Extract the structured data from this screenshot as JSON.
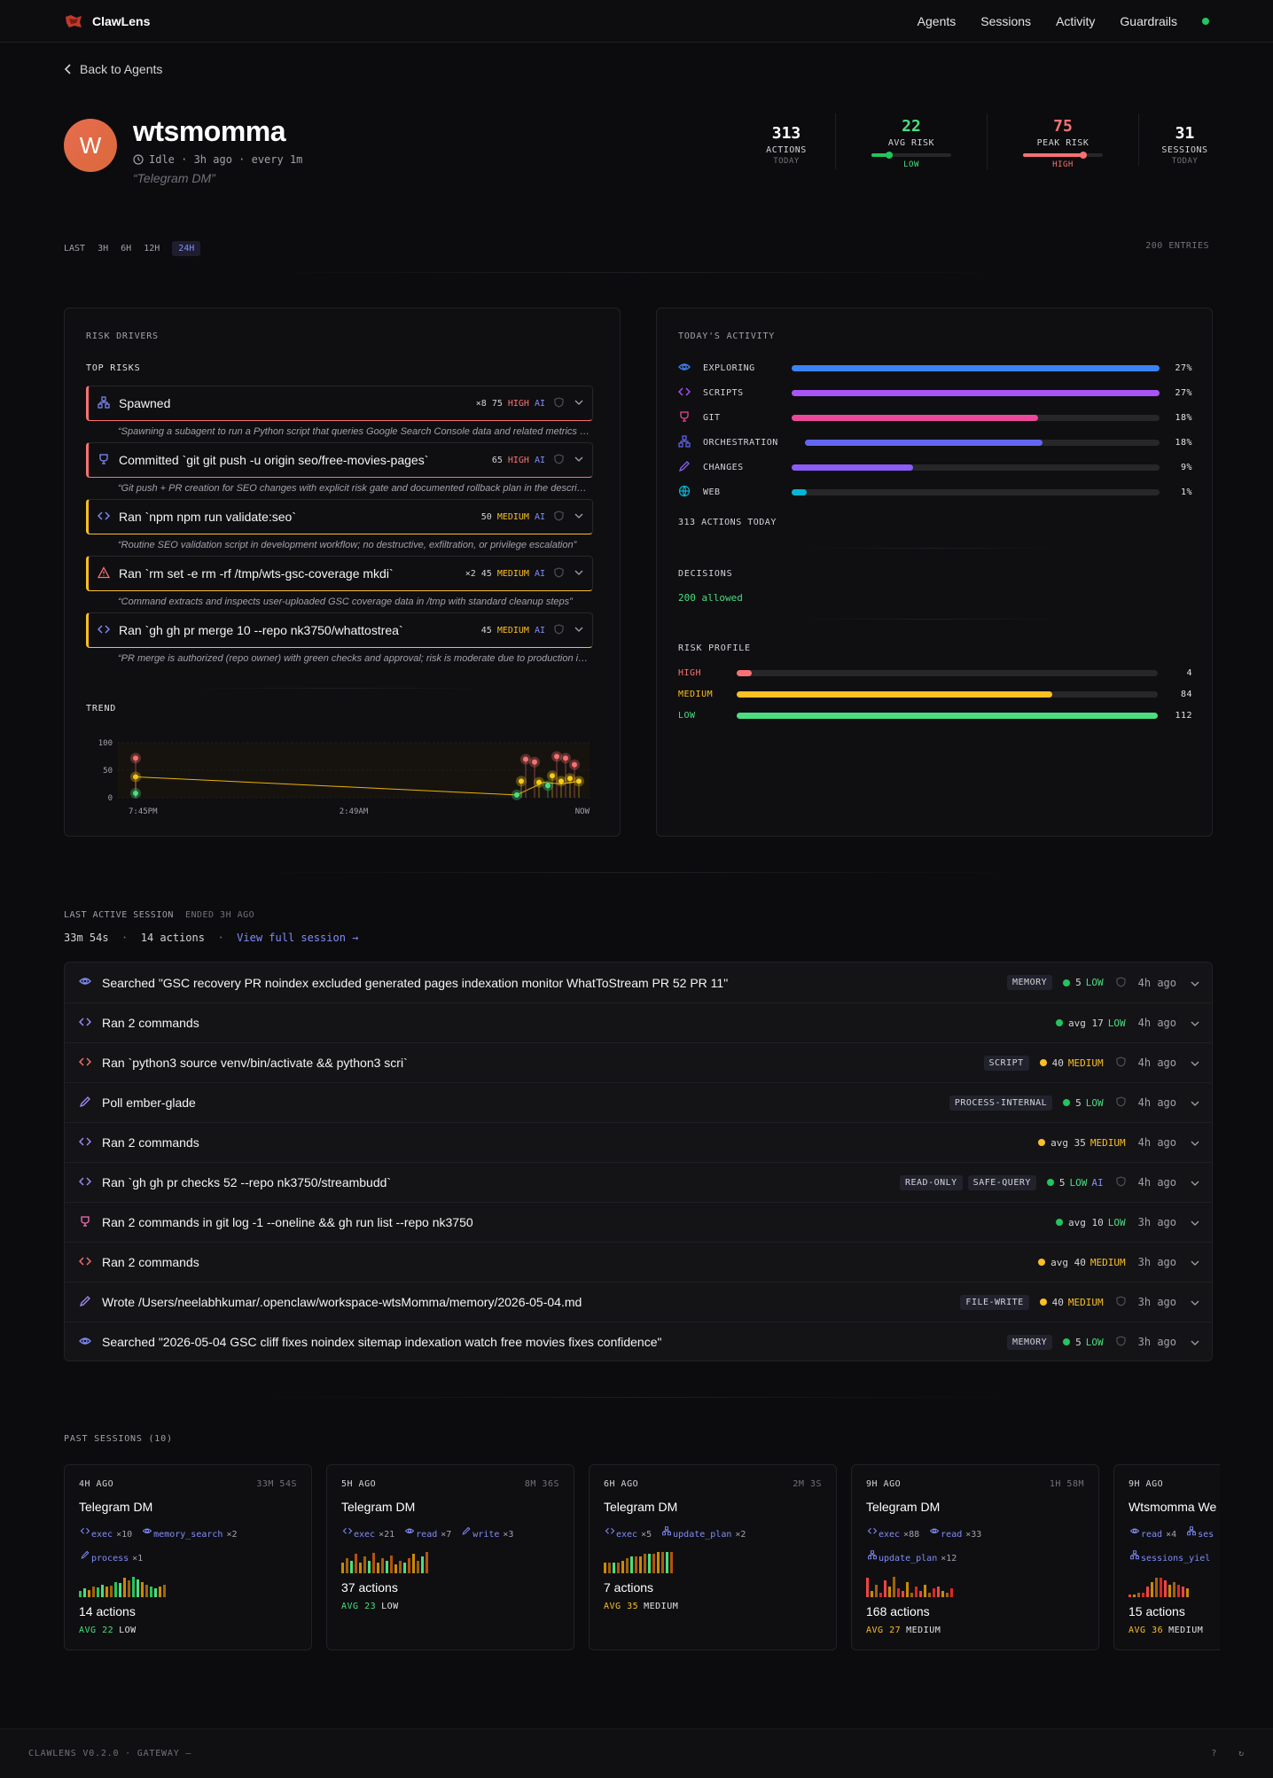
{
  "nav": {
    "brand": "ClawLens",
    "items": [
      "Agents",
      "Sessions",
      "Activity",
      "Guardrails"
    ]
  },
  "back_label": "Back to Agents",
  "agent": {
    "initial": "W",
    "name": "wtsmomma",
    "status": "Idle · 3h ago · every 1m",
    "description": "“Telegram DM”"
  },
  "stats": [
    {
      "value": "313",
      "label": "ACTIONS",
      "sub": "TODAY"
    },
    {
      "value": "22",
      "label": "AVG RISK",
      "sub": "LOW",
      "level": 0.22,
      "color": "#22c55e"
    },
    {
      "value": "75",
      "label": "PEAK RISK",
      "sub": "HIGH",
      "level": 0.75,
      "color": "#f87171"
    },
    {
      "value": "31",
      "label": "SESSIONS",
      "sub": "TODAY"
    }
  ],
  "range": {
    "label": "LAST",
    "options": [
      "3H",
      "6H",
      "12H",
      "24H"
    ],
    "selected": "24H",
    "entries": "200 ENTRIES"
  },
  "risk_drivers": {
    "section_label": "RISK DRIVERS",
    "top_label": "TOP RISKS",
    "items": [
      {
        "icon": "spawn-icon",
        "title": "Spawned",
        "count": "×8",
        "score": "75",
        "level": "HIGH",
        "ai": "AI",
        "color": "#f87171",
        "desc": "“Spawning a subagent to run a Python script that queries Google Search Console data and related metrics for indexation changes”"
      },
      {
        "icon": "git-icon",
        "title": "Committed `git git push -u origin seo/free-movies-pages`",
        "count": "",
        "score": "65",
        "level": "HIGH",
        "ai": "AI",
        "color": "#f87171",
        "desc": "“Git push + PR creation for SEO changes with explicit risk gate and documented rollback plan in the description”"
      },
      {
        "icon": "code-icon",
        "title": "Ran `npm npm run validate:seo`",
        "count": "",
        "score": "50",
        "level": "MEDIUM",
        "ai": "AI",
        "color": "#fbbf24",
        "desc": "“Routine SEO validation script in development workflow; no destructive, exfiltration, or privilege escalation”"
      },
      {
        "icon": "warning-icon",
        "title": "Ran `rm set -e rm -rf /tmp/wts-gsc-coverage mkdi`",
        "count": "×2",
        "score": "45",
        "level": "MEDIUM",
        "ai": "AI",
        "color": "#fbbf24",
        "desc": "“Command extracts and inspects user-uploaded GSC coverage data in /tmp with standard cleanup steps”"
      },
      {
        "icon": "code-icon",
        "title": "Ran `gh gh pr merge 10 --repo nk3750/whattostrea`",
        "count": "",
        "score": "45",
        "level": "MEDIUM",
        "ai": "AI",
        "color": "#fbbf24",
        "desc": "“PR merge is authorized (repo owner) with green checks and approval; risk is moderate due to production impact”"
      }
    ],
    "trend_label": "TREND",
    "trend_y_ticks": [
      "100",
      "50",
      "0"
    ],
    "trend_x_ticks": [
      "7:45PM",
      "2:49AM",
      "NOW"
    ]
  },
  "chart_data": {
    "type": "line",
    "title": "",
    "xlabel": "",
    "ylabel": "",
    "ylim": [
      0,
      100
    ],
    "x_ticks": [
      "7:45PM",
      "2:49AM",
      "NOW"
    ],
    "series": [
      {
        "values": [
          [
            0.0,
            38
          ],
          [
            0.0,
            72
          ],
          [
            0.0,
            8
          ],
          [
            0.86,
            5
          ],
          [
            0.87,
            30
          ],
          [
            0.88,
            70
          ],
          [
            0.9,
            65
          ],
          [
            0.91,
            28
          ],
          [
            0.93,
            22
          ],
          [
            0.94,
            40
          ],
          [
            0.95,
            75
          ],
          [
            0.96,
            30
          ],
          [
            0.97,
            72
          ],
          [
            0.98,
            35
          ],
          [
            0.99,
            60
          ],
          [
            1.0,
            30
          ]
        ]
      }
    ]
  },
  "activity": {
    "section_label": "TODAY'S ACTIVITY",
    "rows": [
      {
        "icon": "eye-icon",
        "name": "EXPLORING",
        "pct": "27%",
        "fill": 1.0,
        "color": "#3b82f6"
      },
      {
        "icon": "code-icon",
        "name": "SCRIPTS",
        "pct": "27%",
        "fill": 1.0,
        "color": "#a855f7"
      },
      {
        "icon": "git-icon",
        "name": "GIT",
        "pct": "18%",
        "fill": 0.67,
        "color": "#ec4899"
      },
      {
        "icon": "spawn-icon",
        "name": "ORCHESTRATION",
        "pct": "18%",
        "fill": 0.67,
        "color": "#6366f1"
      },
      {
        "icon": "pencil-icon",
        "name": "CHANGES",
        "pct": "9%",
        "fill": 0.33,
        "color": "#8b5cf6"
      },
      {
        "icon": "globe-icon",
        "name": "WEB",
        "pct": "1%",
        "fill": 0.04,
        "color": "#06b6d4"
      }
    ],
    "total": "313 ACTIONS TODAY",
    "decisions_label": "DECISIONS",
    "decisions_value": "200 allowed",
    "profile_label": "RISK PROFILE",
    "profile": [
      {
        "name": "HIGH",
        "value": "4",
        "fill": 0.036,
        "color": "#f87171"
      },
      {
        "name": "MEDIUM",
        "value": "84",
        "fill": 0.75,
        "color": "#fbbf24"
      },
      {
        "name": "LOW",
        "value": "112",
        "fill": 1.0,
        "color": "#4ade80"
      }
    ]
  },
  "last_session": {
    "label": "LAST ACTIVE SESSION",
    "ended": "ENDED 3H AGO",
    "duration": "33m 54s",
    "actions": "14 actions",
    "link": "View full session →",
    "rows": [
      {
        "icon": "eye-icon",
        "color": "#818cf8",
        "text": "Searched \"GSC recovery PR noindex excluded generated pages indexation monitor WhatToStream PR 52 PR 11\"",
        "tags": [
          "MEMORY"
        ],
        "dot": "#22c55e",
        "score": "5",
        "level": "LOW",
        "levelColor": "#4ade80",
        "ai": "",
        "shield": true,
        "time": "4h ago"
      },
      {
        "icon": "code-icon",
        "color": "#a78bfa",
        "text": "Ran 2 commands",
        "tags": [],
        "dot": "#22c55e",
        "score": "avg 17",
        "level": "LOW",
        "levelColor": "#4ade80",
        "ai": "",
        "shield": false,
        "time": "4h ago"
      },
      {
        "icon": "code-icon",
        "color": "#f87171",
        "text": "Ran `python3 source venv/bin/activate && python3 scri`",
        "tags": [
          "SCRIPT"
        ],
        "dot": "#fbbf24",
        "score": "40",
        "level": "MEDIUM",
        "levelColor": "#fbbf24",
        "ai": "",
        "shield": true,
        "time": "4h ago"
      },
      {
        "icon": "pencil-icon",
        "color": "#a78bfa",
        "text": "Poll ember-glade",
        "tags": [
          "PROCESS-INTERNAL"
        ],
        "dot": "#22c55e",
        "score": "5",
        "level": "LOW",
        "levelColor": "#4ade80",
        "ai": "",
        "shield": true,
        "time": "4h ago"
      },
      {
        "icon": "code-icon",
        "color": "#a78bfa",
        "text": "Ran 2 commands",
        "tags": [],
        "dot": "#fbbf24",
        "score": "avg 35",
        "level": "MEDIUM",
        "levelColor": "#fbbf24",
        "ai": "",
        "shield": false,
        "time": "4h ago"
      },
      {
        "icon": "code-icon",
        "color": "#a78bfa",
        "text": "Ran `gh gh pr checks 52 --repo nk3750/streambudd`",
        "tags": [
          "READ-ONLY",
          "SAFE-QUERY"
        ],
        "dot": "#22c55e",
        "score": "5",
        "level": "LOW",
        "levelColor": "#4ade80",
        "ai": "AI",
        "shield": true,
        "time": "4h ago"
      },
      {
        "icon": "git-icon",
        "color": "#f472b6",
        "text": "Ran 2 commands in git log -1 --oneline && gh run list --repo nk3750",
        "tags": [],
        "dot": "#22c55e",
        "score": "avg 10",
        "level": "LOW",
        "levelColor": "#4ade80",
        "ai": "",
        "shield": false,
        "time": "3h ago"
      },
      {
        "icon": "code-icon",
        "color": "#f87171",
        "text": "Ran 2 commands",
        "tags": [],
        "dot": "#fbbf24",
        "score": "avg 40",
        "level": "MEDIUM",
        "levelColor": "#fbbf24",
        "ai": "",
        "shield": false,
        "time": "3h ago"
      },
      {
        "icon": "pencil-icon",
        "color": "#a78bfa",
        "text": "Wrote /Users/neelabhkumar/.openclaw/workspace-wtsMomma/memory/2026-05-04.md",
        "tags": [
          "FILE-WRITE"
        ],
        "dot": "#fbbf24",
        "score": "40",
        "level": "MEDIUM",
        "levelColor": "#fbbf24",
        "ai": "",
        "shield": true,
        "time": "3h ago"
      },
      {
        "icon": "eye-icon",
        "color": "#818cf8",
        "text": "Searched \"2026-05-04 GSC cliff fixes noindex sitemap indexation watch free movies fixes confidence\"",
        "tags": [
          "MEMORY"
        ],
        "dot": "#22c55e",
        "score": "5",
        "level": "LOW",
        "levelColor": "#4ade80",
        "ai": "",
        "shield": true,
        "time": "3h ago"
      }
    ]
  },
  "past_sessions": {
    "label": "PAST SESSIONS (10)",
    "cards": [
      {
        "ago": "4H AGO",
        "dur": "33M 54S",
        "title": "Telegram DM",
        "tags": [
          [
            "exec",
            "×10"
          ],
          [
            "memory_search",
            "×2"
          ],
          [
            "process",
            "×1"
          ]
        ],
        "actions": "14 actions",
        "avg": "AVG 22",
        "level": "LOW",
        "avgColor": "#4ade80",
        "bars": [
          0.3,
          0.4,
          0.35,
          0.5,
          0.45,
          0.6,
          0.5,
          0.55,
          0.7,
          0.65,
          0.9,
          0.8,
          0.95,
          0.85,
          0.7,
          0.6,
          0.5,
          0.4,
          0.5,
          0.6
        ],
        "barColor": "mixed-green"
      },
      {
        "ago": "5H AGO",
        "dur": "8M 36S",
        "title": "Telegram DM",
        "tags": [
          [
            "exec",
            "×21"
          ],
          [
            "read",
            "×7"
          ],
          [
            "write",
            "×3"
          ]
        ],
        "actions": "37 actions",
        "avg": "AVG 23",
        "level": "LOW",
        "avgColor": "#4ade80",
        "bars": [
          0.5,
          0.7,
          0.6,
          0.9,
          0.5,
          0.8,
          0.6,
          0.95,
          0.5,
          0.7,
          0.6,
          0.85,
          0.4,
          0.6,
          0.5,
          0.7,
          0.9,
          0.6,
          0.8,
          1.0
        ],
        "barColor": "mixed-amber"
      },
      {
        "ago": "6H AGO",
        "dur": "2M 3S",
        "title": "Telegram DM",
        "tags": [
          [
            "exec",
            "×5"
          ],
          [
            "update_plan",
            "×2"
          ]
        ],
        "actions": "7 actions",
        "avg": "AVG 35",
        "level": "MEDIUM",
        "avgColor": "#fbbf24",
        "bars": [
          0.5,
          0.5,
          0.5,
          0.5,
          0.6,
          0.7,
          0.8,
          0.8,
          0.8,
          0.9,
          0.9,
          0.9,
          1.0,
          1.0,
          1.0,
          1.0
        ],
        "barColor": "mixed-amber"
      },
      {
        "ago": "9H AGO",
        "dur": "1H 58M",
        "title": "Telegram DM",
        "tags": [
          [
            "exec",
            "×88"
          ],
          [
            "read",
            "×33"
          ],
          [
            "update_plan",
            "×12"
          ]
        ],
        "actions": "168 actions",
        "avg": "AVG 27",
        "level": "MEDIUM",
        "avgColor": "#fbbf24",
        "bars": [
          0.9,
          0.3,
          0.6,
          0.2,
          0.8,
          0.5,
          0.95,
          0.4,
          0.3,
          0.7,
          0.2,
          0.5,
          0.3,
          0.6,
          0.2,
          0.4,
          0.5,
          0.3,
          0.2,
          0.4
        ],
        "barColor": "mixed-red"
      },
      {
        "ago": "9H AGO",
        "dur": "",
        "title": "Wtsmomma We",
        "tags": [
          [
            "read",
            "×4"
          ],
          [
            "ses",
            ""
          ],
          [
            "sessions_yiel",
            ""
          ]
        ],
        "actions": "15 actions",
        "avg": "AVG 36",
        "level": "MEDIUM",
        "avgColor": "#fbbf24",
        "bars": [
          0.1,
          0.1,
          0.2,
          0.2,
          0.5,
          0.7,
          0.9,
          0.9,
          0.8,
          0.6,
          0.7,
          0.6,
          0.5,
          0.4
        ],
        "barColor": "mixed-red"
      }
    ]
  },
  "footer": {
    "left": "CLAWLENS V0.2.0 · GATEWAY —",
    "help": "?",
    "refresh": "↻"
  }
}
